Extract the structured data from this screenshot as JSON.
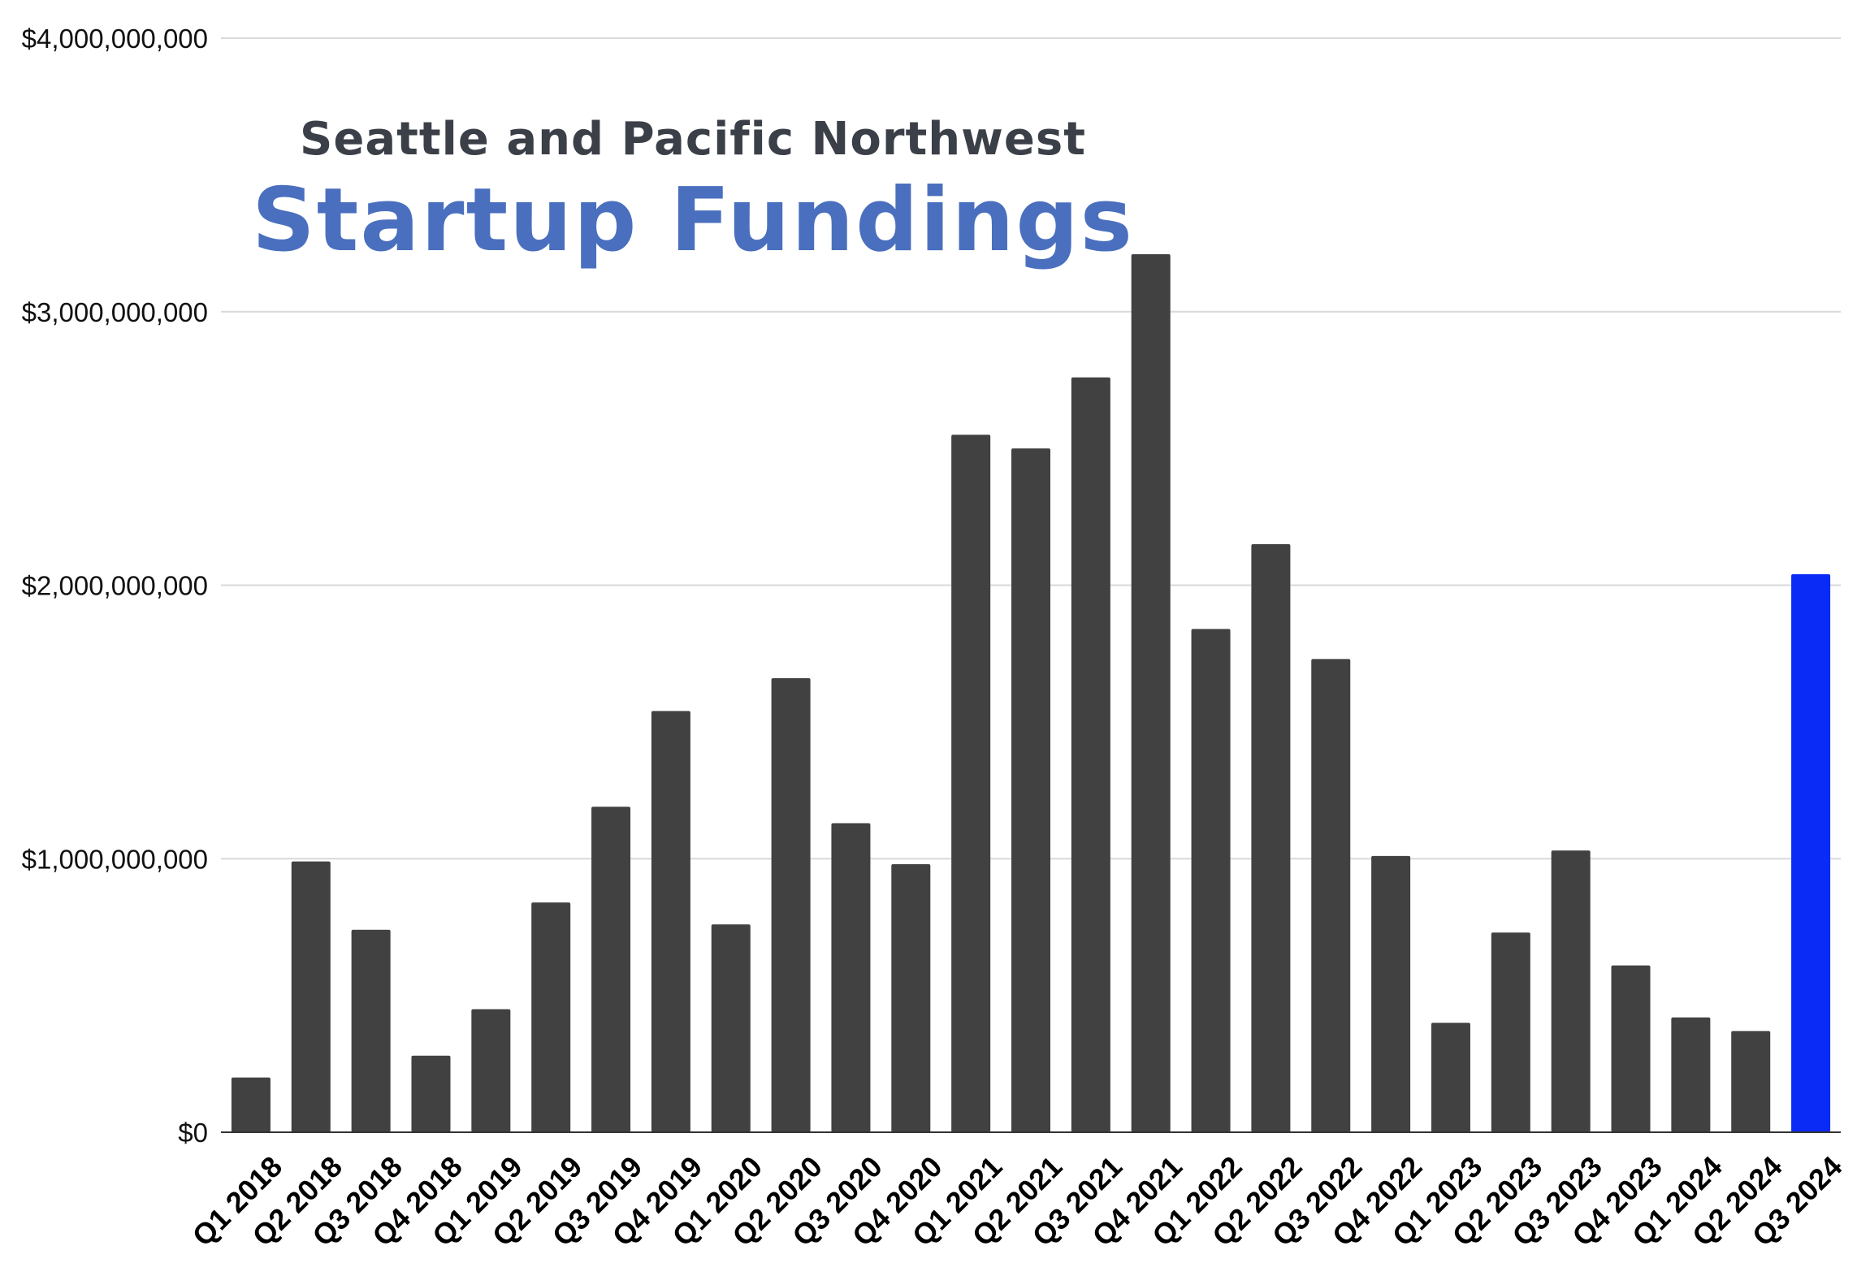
{
  "chart_data": {
    "type": "bar",
    "title_line1": "Seattle and Pacific Northwest",
    "title_line2": "Startup Fundings",
    "xlabel": "",
    "ylabel": "",
    "ylim": [
      0,
      4000000000
    ],
    "yticks": [
      0,
      1000000000,
      2000000000,
      3000000000,
      4000000000
    ],
    "ytick_labels": [
      "$0",
      "$1,000,000,000",
      "$2,000,000,000",
      "$3,000,000,000",
      "$4,000,000,000"
    ],
    "grid": true,
    "categories": [
      "Q1 2018",
      "Q2 2018",
      "Q3 2018",
      "Q4 2018",
      "Q1 2019",
      "Q2 2019",
      "Q3 2019",
      "Q4 2019",
      "Q1 2020",
      "Q2 2020",
      "Q3 2020",
      "Q4 2020",
      "Q1 2021",
      "Q2 2021",
      "Q3 2021",
      "Q4 2021",
      "Q1 2022",
      "Q2 2022",
      "Q3 2022",
      "Q4 2022",
      "Q1 2023",
      "Q2 2023",
      "Q3 2023",
      "Q4 2023",
      "Q1 2024",
      "Q2 2024",
      "Q3 2024"
    ],
    "values": [
      200000000,
      990000000,
      740000000,
      280000000,
      450000000,
      840000000,
      1190000000,
      1540000000,
      760000000,
      1660000000,
      1130000000,
      980000000,
      2550000000,
      2500000000,
      2760000000,
      3210000000,
      1840000000,
      2150000000,
      1730000000,
      1010000000,
      400000000,
      730000000,
      1030000000,
      610000000,
      420000000,
      370000000,
      2040000000
    ],
    "colors": {
      "bar": "#414141",
      "highlight": "#0a2af5",
      "grid": "#d9d9d9",
      "title_dark": "#3b3f47",
      "title_blue": "#4a6fbe"
    },
    "highlight_category": "Q3 2024"
  }
}
